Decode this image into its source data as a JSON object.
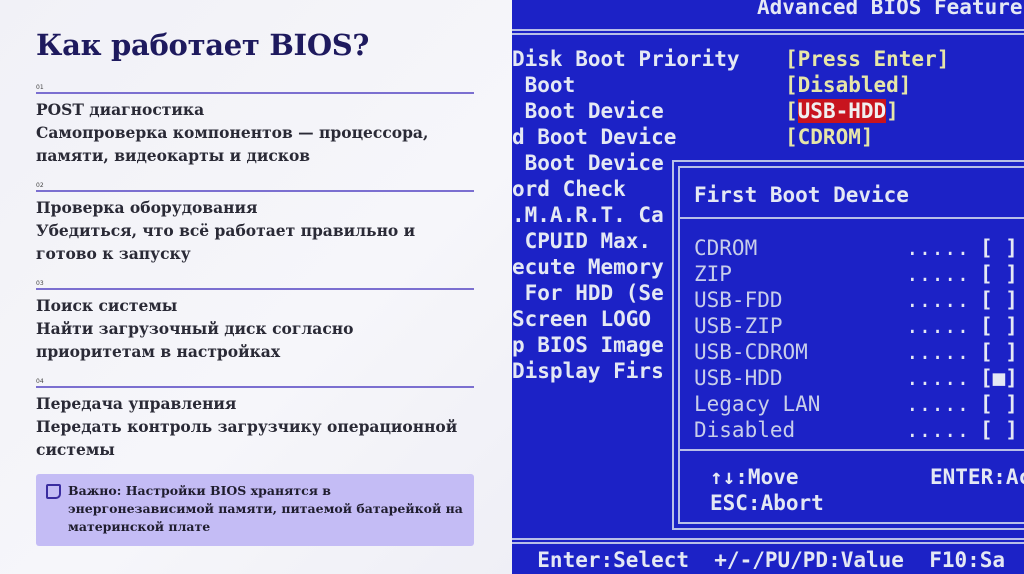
{
  "slide": {
    "title": "Как работает BIOS?",
    "steps": [
      {
        "num": "01",
        "heading": "POST диагностика",
        "description": "Самопроверка компонентов — процессора, памяти, видеокарты и дисков"
      },
      {
        "num": "02",
        "heading": "Проверка оборудования",
        "description": "Убедиться, что всё работает правильно и готово к запуску"
      },
      {
        "num": "03",
        "heading": "Поиск системы",
        "description": "Найти загрузочный диск согласно приоритетам в настройках"
      },
      {
        "num": "04",
        "heading": "Передача управления",
        "description": "Передать контроль загрузчику операционной системы"
      }
    ],
    "note": {
      "icon": "note-icon",
      "text": "Важно: Настройки BIOS хранятся в энергонезависимой памяти, питаемой батарейкой на материнской плате"
    }
  },
  "bios_photo": {
    "header": "Advanced BIOS Feature",
    "settings": [
      {
        "label": "Disk Boot Priority",
        "value": "[Press Enter]"
      },
      {
        "label": " Boot",
        "value": "[Disabled]"
      },
      {
        "label": " Boot Device",
        "value": "USB-HDD",
        "highlighted": true
      },
      {
        "label": "d Boot Device",
        "value": "[CDROM]"
      },
      {
        "label": " Boot Device"
      },
      {
        "label": "ord Check"
      },
      {
        "label": ".M.A.R.T. Ca"
      },
      {
        "label": " CPUID Max."
      },
      {
        "label": "ecute Memory"
      },
      {
        "label": " For HDD (Se"
      },
      {
        "label": "Screen LOGO"
      },
      {
        "label": "p BIOS Image"
      },
      {
        "label": "Display Firs"
      }
    ],
    "popup": {
      "title": "First Boot Device",
      "options": [
        {
          "label": "CDROM",
          "dots": ".....",
          "mark": "[ ]"
        },
        {
          "label": "ZIP",
          "dots": ".....",
          "mark": "[ ]"
        },
        {
          "label": "USB-FDD",
          "dots": ".....",
          "mark": "[ ]"
        },
        {
          "label": "USB-ZIP",
          "dots": ".....",
          "mark": "[ ]"
        },
        {
          "label": "USB-CDROM",
          "dots": ".....",
          "mark": "[ ]"
        },
        {
          "label": "USB-HDD",
          "dots": ".....",
          "mark": "[■]",
          "selected": true
        },
        {
          "label": "Legacy LAN",
          "dots": ".....",
          "mark": "[ ]"
        },
        {
          "label": "Disabled",
          "dots": ".....",
          "mark": "[ ]"
        }
      ],
      "help_move": "↑↓:Move",
      "help_enter": "ENTER:Ac",
      "help_abort": "ESC:Abort"
    },
    "footer": "  Enter:Select  +/-/PU/PD:Value  F10:Sa",
    "colors": {
      "background": "#1c22c6",
      "value_text": "#e6e6a8",
      "highlight": "#c8141e"
    }
  }
}
